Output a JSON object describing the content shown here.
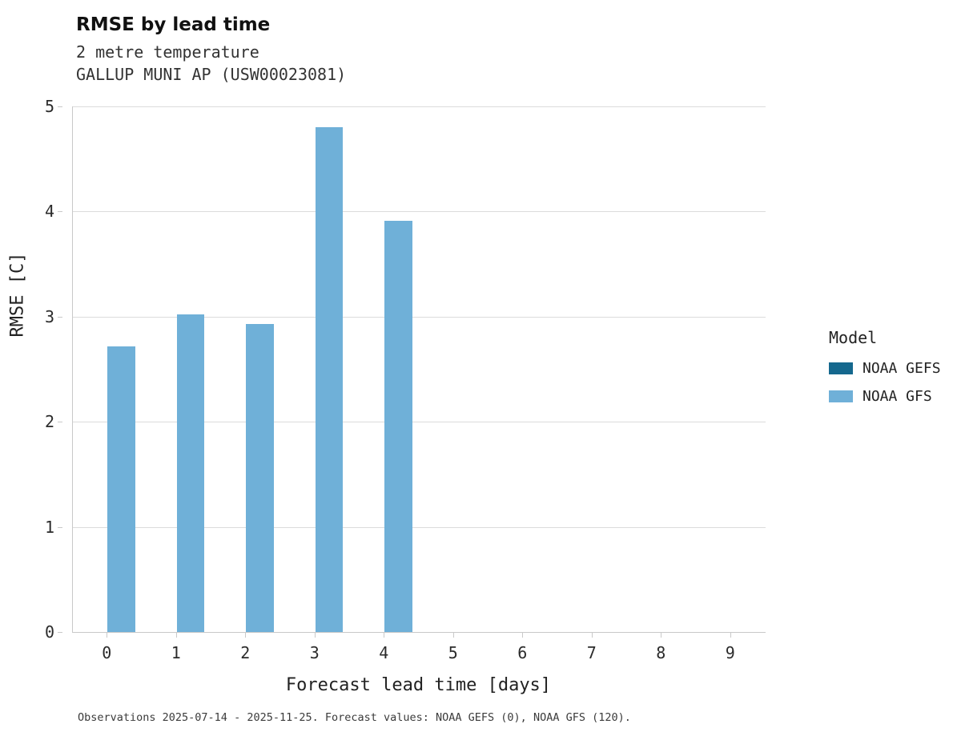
{
  "title": "RMSE by lead time",
  "subtitle_line1": "2 metre temperature",
  "subtitle_line2": "GALLUP MUNI AP (USW00023081)",
  "caption": "Observations 2025-07-14 - 2025-11-25. Forecast values: NOAA GEFS (0), NOAA GFS (120).",
  "legend": {
    "title": "Model",
    "entries": [
      {
        "label": "NOAA GEFS",
        "color": "#15688e"
      },
      {
        "label": "NOAA GFS",
        "color": "#6fb0d8"
      }
    ]
  },
  "chart_data": {
    "type": "bar",
    "title": "RMSE by lead time",
    "subtitle": "2 metre temperature — GALLUP MUNI AP (USW00023081)",
    "xlabel": "Forecast lead time [days]",
    "ylabel": "RMSE [C]",
    "categories": [
      "0",
      "1",
      "2",
      "3",
      "4",
      "5",
      "6",
      "7",
      "8",
      "9"
    ],
    "series": [
      {
        "name": "NOAA GEFS",
        "color": "#15688e",
        "values": [
          null,
          null,
          null,
          null,
          null,
          null,
          null,
          null,
          null,
          null
        ]
      },
      {
        "name": "NOAA GFS",
        "color": "#6fb0d8",
        "values": [
          2.72,
          3.02,
          2.93,
          4.8,
          3.91,
          null,
          null,
          null,
          null,
          null
        ]
      }
    ],
    "ylim": [
      0,
      5
    ],
    "yticks": [
      0,
      1,
      2,
      3,
      4,
      5
    ],
    "grid": true,
    "legend_position": "right",
    "legend_title": "Model"
  }
}
